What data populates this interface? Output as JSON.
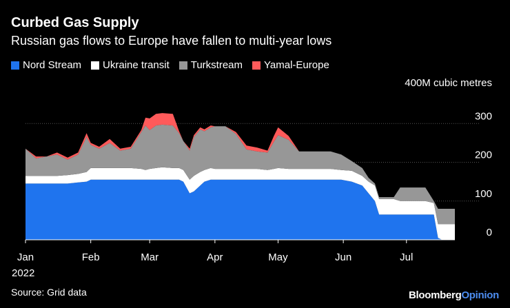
{
  "header": {
    "title": "Curbed Gas Supply",
    "subtitle": "Russian gas flows to Europe have fallen to multi-year lows"
  },
  "footer": {
    "source": "Source: Grid data",
    "brand_main": "Bloomberg",
    "brand_accent": "Opinion"
  },
  "chart_data": {
    "type": "area",
    "stacked": true,
    "title": "Curbed Gas Supply",
    "ylabel": "M cubic metres",
    "y_unit_label": "400M cubic metres",
    "ylim": [
      0,
      400
    ],
    "yticks": [
      {
        "value": 0,
        "label": "0"
      },
      {
        "value": 100,
        "label": "100"
      },
      {
        "value": 200,
        "label": "200"
      },
      {
        "value": 300,
        "label": "300"
      }
    ],
    "x_day_range": [
      0,
      204
    ],
    "xticks": [
      {
        "day": 0,
        "label": "Jan",
        "sublabel": "2022"
      },
      {
        "day": 31,
        "label": "Feb",
        "sublabel": ""
      },
      {
        "day": 59,
        "label": "Mar",
        "sublabel": ""
      },
      {
        "day": 90,
        "label": "Apr",
        "sublabel": ""
      },
      {
        "day": 120,
        "label": "May",
        "sublabel": ""
      },
      {
        "day": 151,
        "label": "Jun",
        "sublabel": ""
      },
      {
        "day": 181,
        "label": "Jul",
        "sublabel": ""
      }
    ],
    "x_days": [
      0,
      5,
      10,
      15,
      20,
      25,
      29,
      31,
      35,
      40,
      45,
      50,
      55,
      57,
      59,
      62,
      65,
      70,
      73,
      75,
      78,
      80,
      83,
      85,
      88,
      90,
      95,
      100,
      105,
      110,
      115,
      118,
      120,
      125,
      130,
      135,
      140,
      145,
      150,
      155,
      160,
      163,
      166,
      168,
      170,
      175,
      178,
      180,
      185,
      188,
      190,
      194,
      196,
      198,
      200,
      204
    ],
    "series": [
      {
        "name": "Nord Stream",
        "color": "#1f74ee",
        "values": [
          145,
          145,
          145,
          145,
          145,
          148,
          150,
          155,
          155,
          155,
          155,
          155,
          155,
          155,
          155,
          155,
          155,
          155,
          155,
          150,
          120,
          125,
          140,
          150,
          155,
          155,
          155,
          155,
          155,
          155,
          155,
          155,
          155,
          155,
          155,
          155,
          155,
          155,
          155,
          150,
          140,
          120,
          100,
          65,
          65,
          65,
          65,
          65,
          65,
          65,
          65,
          65,
          5,
          0,
          0,
          0
        ]
      },
      {
        "name": "Ukraine transit",
        "color": "#ffffff",
        "values": [
          20,
          20,
          20,
          20,
          22,
          22,
          25,
          30,
          30,
          30,
          30,
          30,
          28,
          25,
          28,
          30,
          32,
          30,
          30,
          30,
          35,
          40,
          35,
          30,
          30,
          28,
          28,
          28,
          28,
          28,
          25,
          28,
          30,
          28,
          28,
          28,
          28,
          28,
          25,
          28,
          25,
          30,
          40,
          40,
          40,
          40,
          35,
          35,
          35,
          35,
          35,
          30,
          35,
          40,
          40,
          40
        ]
      },
      {
        "name": "Turkstream",
        "color": "#979797",
        "values": [
          70,
          45,
          50,
          55,
          40,
          50,
          90,
          60,
          50,
          65,
          45,
          50,
          95,
          115,
          100,
          110,
          110,
          110,
          90,
          75,
          75,
          100,
          110,
          100,
          105,
          110,
          110,
          90,
          50,
          45,
          45,
          70,
          85,
          75,
          45,
          45,
          45,
          45,
          40,
          25,
          20,
          10,
          5,
          5,
          5,
          5,
          35,
          35,
          35,
          35,
          35,
          5,
          40,
          40,
          40,
          40
        ]
      },
      {
        "name": "Yamal-Europe",
        "color": "#ff5a5a",
        "values": [
          0,
          5,
          0,
          5,
          5,
          5,
          10,
          5,
          5,
          10,
          5,
          5,
          5,
          20,
          30,
          30,
          30,
          30,
          5,
          0,
          5,
          5,
          5,
          5,
          5,
          0,
          0,
          5,
          10,
          10,
          5,
          15,
          20,
          10,
          0,
          0,
          0,
          0,
          0,
          0,
          0,
          0,
          0,
          0,
          0,
          0,
          0,
          0,
          0,
          0,
          0,
          0,
          0,
          0,
          0,
          0
        ]
      }
    ]
  }
}
